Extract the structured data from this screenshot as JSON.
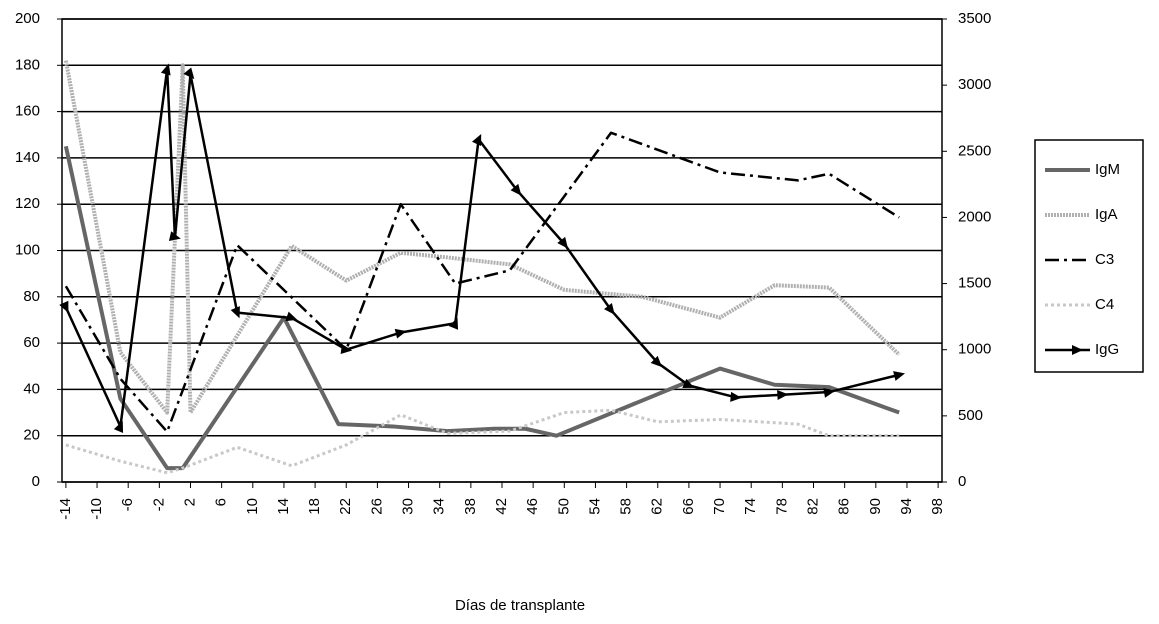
{
  "chart_data": {
    "type": "line",
    "x_label": "Días de transplante",
    "xlim": [
      -14.5,
      98.5
    ],
    "xticks": [
      -14,
      -10,
      -6,
      -2,
      2,
      6,
      10,
      14,
      18,
      22,
      26,
      30,
      34,
      38,
      42,
      46,
      50,
      54,
      58,
      62,
      66,
      70,
      74,
      78,
      82,
      86,
      90,
      94,
      98
    ],
    "ylim": [
      0,
      200
    ],
    "yticks": [
      0,
      20,
      40,
      60,
      80,
      100,
      120,
      140,
      160,
      180,
      200
    ],
    "y2lim": [
      0,
      3500
    ],
    "y2ticks": [
      0,
      500,
      1000,
      1500,
      2000,
      2500,
      3000,
      3500
    ],
    "grid": true,
    "legend": "right",
    "series": [
      {
        "name": "IgM",
        "color": "#666666",
        "style": "thick",
        "x": [
          -14,
          -7,
          -1,
          1,
          14,
          21,
          28,
          35,
          41,
          45,
          49,
          70,
          77,
          84,
          93
        ],
        "values": [
          145,
          36,
          6,
          6,
          71,
          25,
          24,
          22,
          23,
          23,
          20,
          49,
          42,
          41,
          30
        ]
      },
      {
        "name": "IgA",
        "color": "#b0b0b0",
        "style": "dotted-thick",
        "x": [
          -14,
          -7,
          -1,
          1,
          2,
          15,
          22,
          29,
          35,
          43,
          50,
          60,
          70,
          77,
          84,
          93
        ],
        "values": [
          182,
          56,
          30,
          180,
          30,
          102,
          87,
          99,
          97,
          94,
          83,
          80,
          71,
          85,
          84,
          55
        ]
      },
      {
        "name": "C3",
        "color": "#000000",
        "style": "dashdot",
        "axis": "y2",
        "x": [
          -14,
          -7,
          -1,
          8,
          22,
          29,
          36,
          43,
          56,
          70,
          80,
          84,
          93
        ],
        "values": [
          1480,
          780,
          380,
          1790,
          1000,
          2100,
          1500,
          1600,
          2640,
          2340,
          2280,
          2330,
          2000
        ]
      },
      {
        "name": "C4",
        "color": "#c8c8c8",
        "style": "dotted",
        "x": [
          -14,
          -7,
          -1,
          1,
          8,
          15,
          22,
          29,
          35,
          43,
          50,
          56,
          62,
          70,
          80,
          84,
          93
        ],
        "values": [
          16,
          9,
          4,
          6,
          15,
          7,
          16,
          29,
          21,
          22,
          30,
          31,
          26,
          27,
          25,
          20,
          20
        ]
      },
      {
        "name": "IgG",
        "color": "#000000",
        "style": "arrows",
        "axis": "y2",
        "x": [
          -14,
          -7,
          -1,
          0,
          2,
          8,
          15,
          22,
          29,
          36,
          39,
          44,
          50,
          56,
          62,
          66,
          72,
          78,
          84,
          93
        ],
        "values": [
          1320,
          420,
          3120,
          1850,
          3080,
          1280,
          1240,
          1000,
          1130,
          1200,
          2590,
          2200,
          1800,
          1300,
          900,
          730,
          640,
          660,
          680,
          810
        ]
      }
    ]
  }
}
